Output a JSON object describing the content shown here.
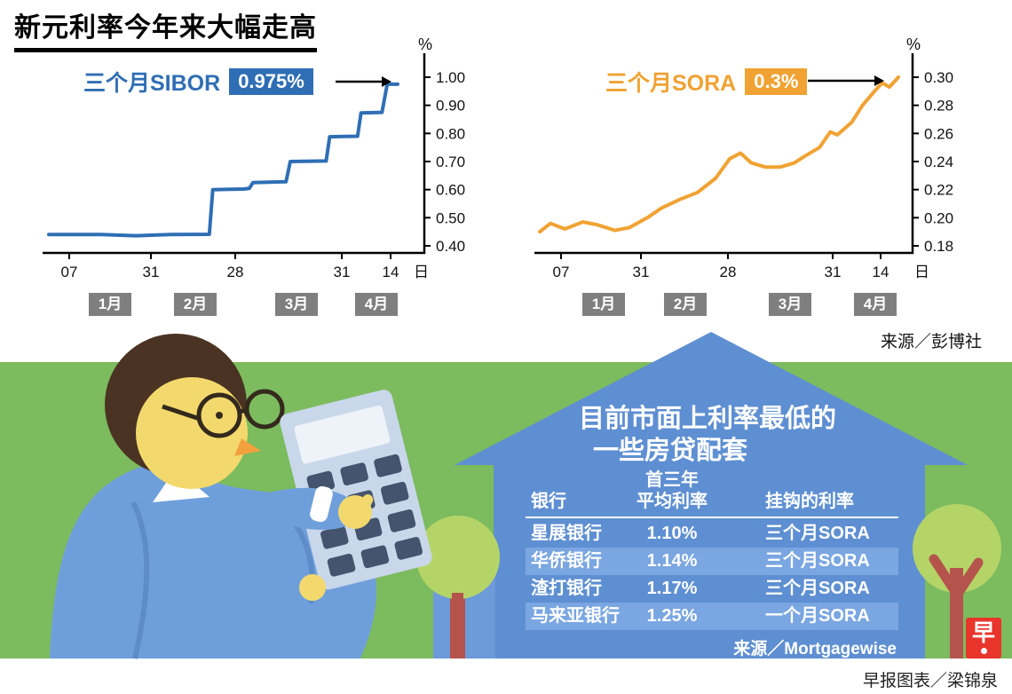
{
  "title": "新元利率今年来大幅走高",
  "source_top": "来源／彭博社",
  "charts": [
    {
      "label": "三个月SIBOR",
      "value_badge": "0.975%"
    },
    {
      "label": "三个月SORA",
      "value_badge": "0.3%"
    }
  ],
  "chart_data": [
    {
      "type": "line",
      "name": "三个月SIBOR",
      "unit": "%",
      "ylim": [
        0.4,
        1.0
      ],
      "y_ticks": [
        "1.00",
        "0.90",
        "0.80",
        "0.70",
        "0.60",
        "0.50",
        "0.40"
      ],
      "x_ticks": [
        "07",
        "31",
        "28",
        "31",
        "14"
      ],
      "x_axis_label": "日",
      "months": [
        "1月",
        "2月",
        "3月",
        "4月"
      ],
      "latest": 0.975,
      "points": [
        [
          0.0,
          0.44
        ],
        [
          0.15,
          0.44
        ],
        [
          0.25,
          0.436
        ],
        [
          0.35,
          0.44
        ],
        [
          0.46,
          0.441
        ],
        [
          0.47,
          0.6
        ],
        [
          0.56,
          0.602
        ],
        [
          0.575,
          0.605
        ],
        [
          0.585,
          0.625
        ],
        [
          0.68,
          0.628
        ],
        [
          0.692,
          0.7
        ],
        [
          0.795,
          0.702
        ],
        [
          0.805,
          0.788
        ],
        [
          0.885,
          0.79
        ],
        [
          0.895,
          0.873
        ],
        [
          0.955,
          0.875
        ],
        [
          0.97,
          0.975
        ],
        [
          1.0,
          0.975
        ]
      ]
    },
    {
      "type": "line",
      "name": "三个月SORA",
      "unit": "%",
      "ylim": [
        0.18,
        0.3
      ],
      "y_ticks": [
        "0.30",
        "0.28",
        "0.26",
        "0.24",
        "0.22",
        "0.20",
        "0.18"
      ],
      "x_ticks": [
        "07",
        "31",
        "28",
        "31",
        "14"
      ],
      "x_axis_label": "日",
      "months": [
        "1月",
        "2月",
        "3月",
        "4月"
      ],
      "latest": 0.3,
      "points": [
        [
          0.0,
          0.19
        ],
        [
          0.03,
          0.196
        ],
        [
          0.07,
          0.192
        ],
        [
          0.12,
          0.197
        ],
        [
          0.16,
          0.195
        ],
        [
          0.21,
          0.191
        ],
        [
          0.25,
          0.193
        ],
        [
          0.3,
          0.2
        ],
        [
          0.34,
          0.207
        ],
        [
          0.39,
          0.213
        ],
        [
          0.44,
          0.218
        ],
        [
          0.49,
          0.228
        ],
        [
          0.53,
          0.242
        ],
        [
          0.56,
          0.246
        ],
        [
          0.59,
          0.239
        ],
        [
          0.63,
          0.236
        ],
        [
          0.67,
          0.236
        ],
        [
          0.71,
          0.239
        ],
        [
          0.74,
          0.244
        ],
        [
          0.78,
          0.25
        ],
        [
          0.81,
          0.261
        ],
        [
          0.83,
          0.259
        ],
        [
          0.87,
          0.268
        ],
        [
          0.9,
          0.28
        ],
        [
          0.93,
          0.289
        ],
        [
          0.955,
          0.296
        ],
        [
          0.975,
          0.293
        ],
        [
          1.0,
          0.3
        ]
      ]
    }
  ],
  "house": {
    "title_line1": "目前市面上利率最低的",
    "title_line2": "一些房贷配套",
    "table": {
      "header_over": "首三年",
      "col_bank": "银行",
      "col_rate": "平均利率",
      "col_peg": "挂钩的利率",
      "rows": [
        {
          "bank": "星展银行",
          "rate": "1.10%",
          "peg": "三个月SORA"
        },
        {
          "bank": "华侨银行",
          "rate": "1.14%",
          "peg": "三个月SORA"
        },
        {
          "bank": "渣打银行",
          "rate": "1.17%",
          "peg": "三个月SORA"
        },
        {
          "bank": "马来亚银行",
          "rate": "1.25%",
          "peg": "一个月SORA"
        }
      ]
    },
    "source": "来源／Mortgagewise"
  },
  "footer": {
    "credit": "早报图表／梁锦泉",
    "logo_char": "早"
  },
  "colors": {
    "sibor": "#2f6eb4",
    "sora": "#f0a232",
    "green": "#7cbb5e",
    "house": "#5e8fd2",
    "stripe": "#7aa6e2",
    "logo_red": "#e8342b",
    "month_box": "#7f7f7f"
  }
}
